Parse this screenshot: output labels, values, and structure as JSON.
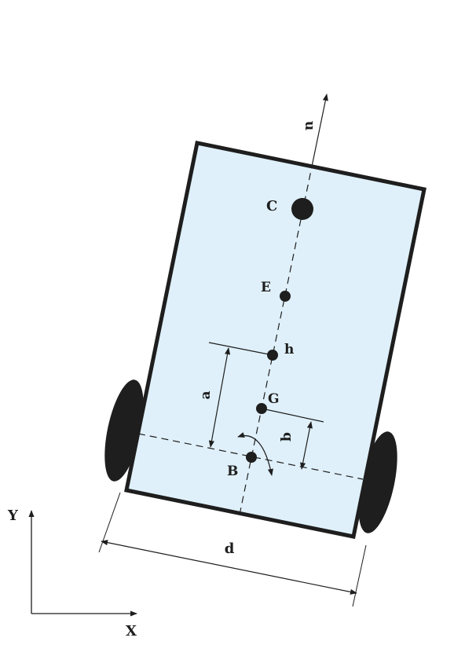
{
  "colors": {
    "body_fill": "#dff0fa",
    "stroke": "#1e1e1e",
    "wheel": "#1e1e1e"
  },
  "labels": {
    "C": "C",
    "E": "E",
    "h": "h",
    "G": "G",
    "B": "B",
    "a": "a",
    "b": "b",
    "d": "d",
    "u": "u",
    "X": "X",
    "Y": "Y"
  }
}
